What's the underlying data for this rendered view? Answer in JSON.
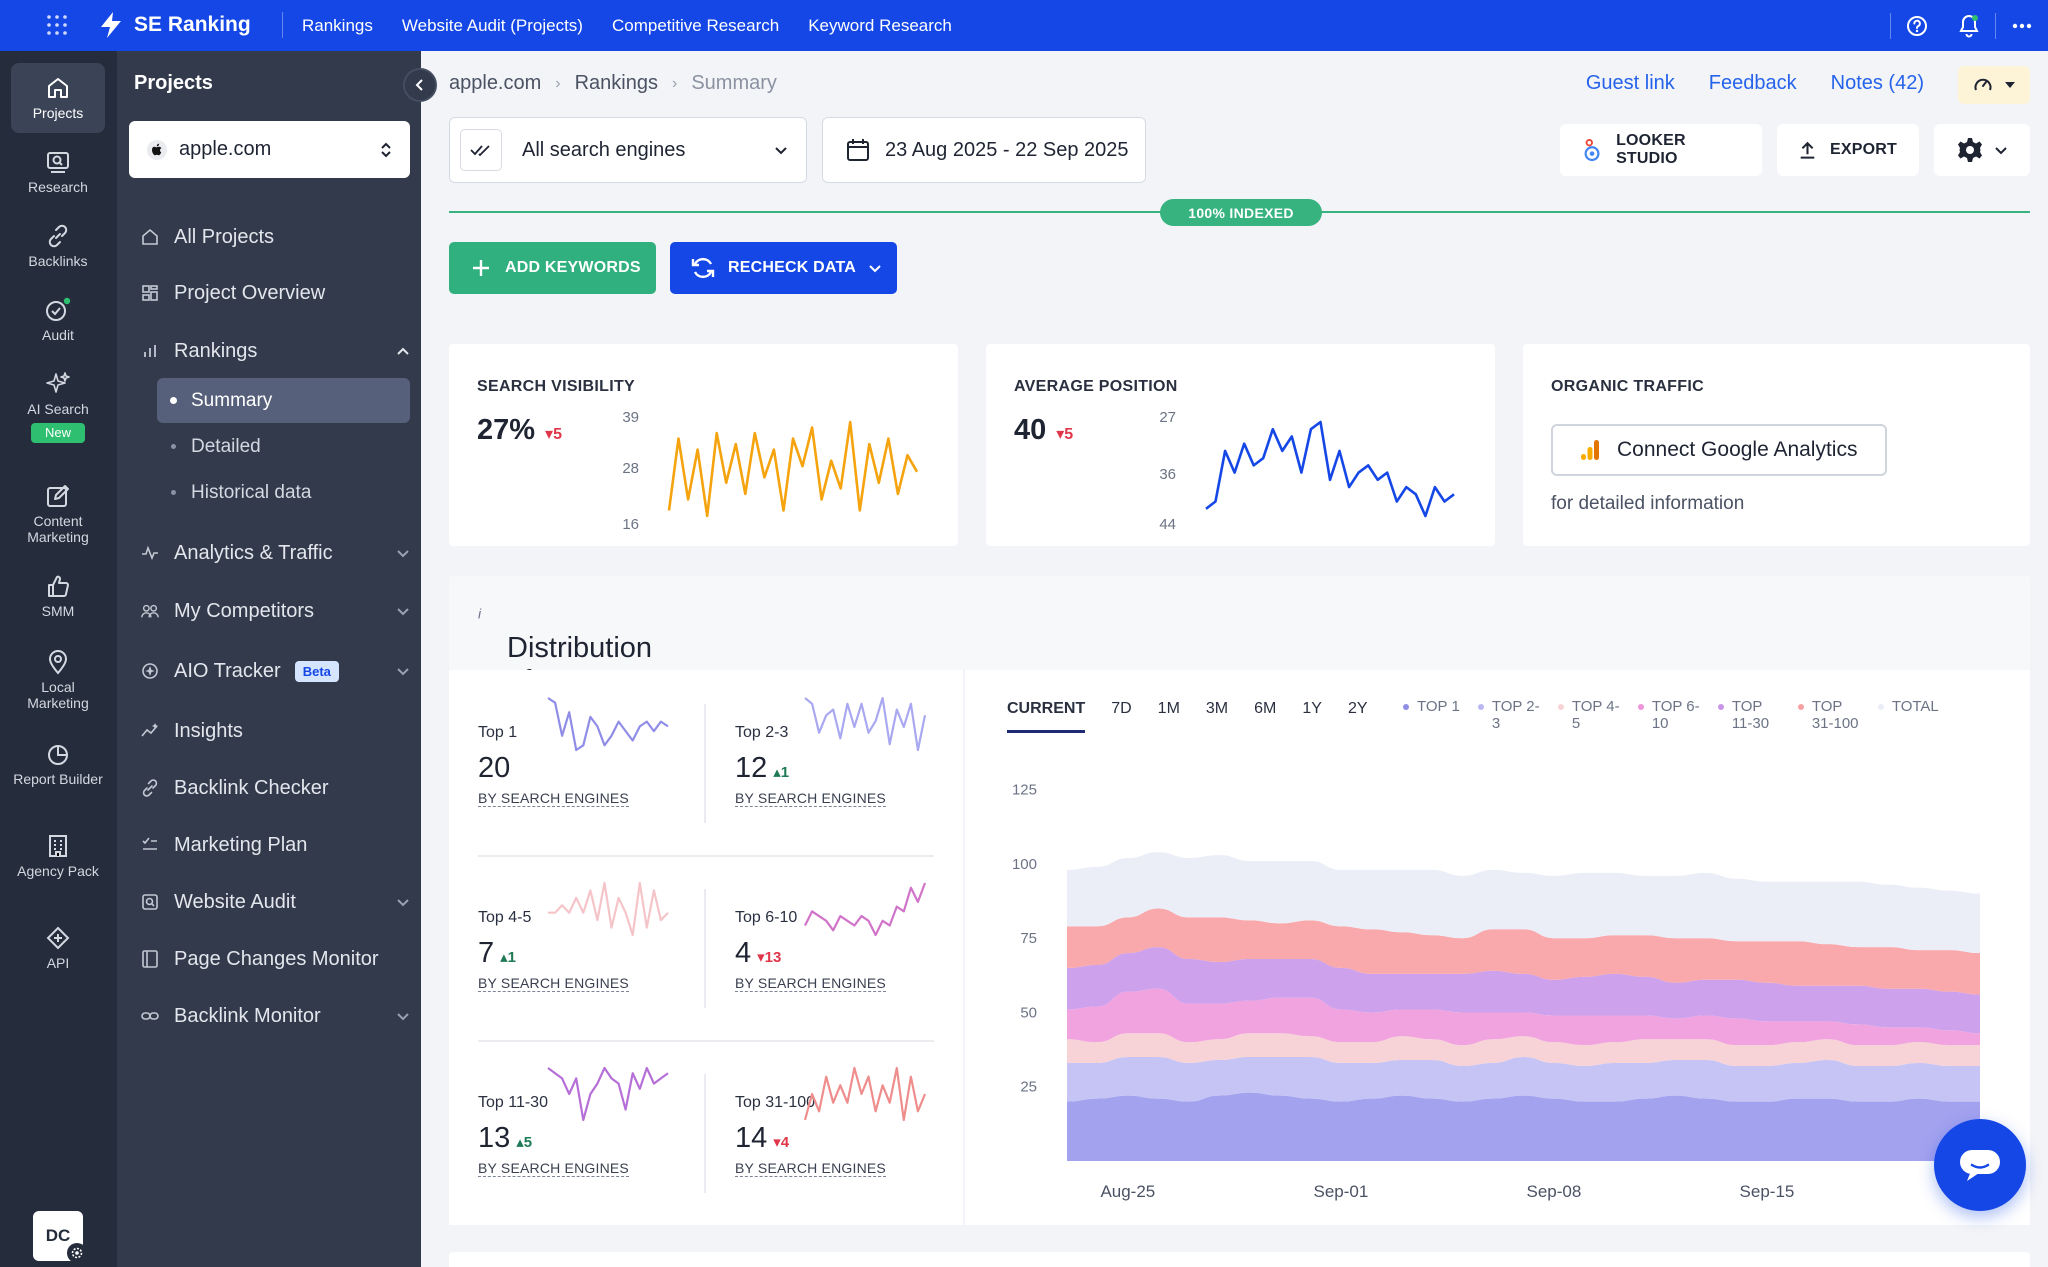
{
  "topbar": {
    "brand": "SE Ranking",
    "nav": [
      "Rankings",
      "Website Audit (Projects)",
      "Competitive Research",
      "Keyword Research"
    ],
    "icons": [
      "apps-grid-icon",
      "help-icon",
      "bell-icon",
      "more-icon"
    ]
  },
  "rail": [
    {
      "label": "Projects",
      "icon": "home-icon"
    },
    {
      "label": "Research",
      "icon": "research-icon"
    },
    {
      "label": "Backlinks",
      "icon": "link-icon"
    },
    {
      "label": "Audit",
      "icon": "audit-check-icon"
    },
    {
      "label": "AI Search",
      "icon": "sparkle-icon",
      "badge": "New"
    },
    {
      "label": "Content Marketing",
      "icon": "edit-icon"
    },
    {
      "label": "SMM",
      "icon": "thumbs-up-icon"
    },
    {
      "label": "Local Marketing",
      "icon": "pin-icon"
    },
    {
      "label": "Report Builder",
      "icon": "report-icon"
    },
    {
      "label": "Agency Pack",
      "icon": "building-icon"
    },
    {
      "label": "API",
      "icon": "api-icon"
    }
  ],
  "user": {
    "initials": "DC"
  },
  "sidebar": {
    "title": "Projects",
    "project": "apple.com",
    "items": [
      {
        "label": "All Projects",
        "icon": "home-icon"
      },
      {
        "label": "Project Overview",
        "icon": "dashboard-icon"
      },
      {
        "label": "Rankings",
        "icon": "bar-chart-icon"
      },
      {
        "label": "Analytics & Traffic",
        "icon": "pulse-icon"
      },
      {
        "label": "My Competitors",
        "icon": "users-icon"
      },
      {
        "label": "AIO Tracker",
        "icon": "aio-icon",
        "badge": "Beta"
      },
      {
        "label": "Insights",
        "icon": "insights-icon"
      },
      {
        "label": "Backlink Checker",
        "icon": "link-icon"
      },
      {
        "label": "Marketing Plan",
        "icon": "checklist-icon"
      },
      {
        "label": "Website Audit",
        "icon": "audit-icon"
      },
      {
        "label": "Page Changes Monitor",
        "icon": "page-changes-icon"
      },
      {
        "label": "Backlink Monitor",
        "icon": "chain-icon"
      }
    ],
    "rankings_sub": [
      "Summary",
      "Detailed",
      "Historical data"
    ]
  },
  "breadcrumb": [
    "apple.com",
    "Rankings",
    "Summary"
  ],
  "header_links": {
    "guest": "Guest link",
    "feedback": "Feedback",
    "notes": "Notes (42)"
  },
  "filters": {
    "engines": "All search engines",
    "date_range": "23 Aug 2025 - 22 Sep 2025"
  },
  "toolbar": {
    "looker": "LOOKER STUDIO",
    "export": "EXPORT"
  },
  "indexed": "100% INDEXED",
  "actions": {
    "add": "ADD KEYWORDS",
    "recheck": "RECHECK DATA"
  },
  "cards": {
    "visibility": {
      "label": "SEARCH VISIBILITY",
      "value": "27%",
      "delta": "5",
      "trend": "down",
      "yticks": [
        "39",
        "28",
        "16"
      ],
      "color": "#f5a30f"
    },
    "avg_position": {
      "label": "AVERAGE POSITION",
      "value": "40",
      "delta": "5",
      "trend": "down",
      "yticks": [
        "27",
        "36",
        "44"
      ],
      "color": "#1447e6"
    },
    "traffic": {
      "label": "ORGANIC TRAFFIC",
      "button": "Connect Google Analytics",
      "note": "for detailed information"
    }
  },
  "distribution": {
    "title": "Distribution of top positions",
    "info": "i",
    "tiles": [
      {
        "label": "Top 1",
        "value": "20",
        "delta": "",
        "trend": "none",
        "sub": "BY SEARCH ENGINES",
        "color": "#8f8de6"
      },
      {
        "label": "Top 2-3",
        "value": "12",
        "delta": "1",
        "trend": "up",
        "sub": "BY SEARCH ENGINES",
        "color": "#a9a8f0"
      },
      {
        "label": "Top 4-5",
        "value": "7",
        "delta": "1",
        "trend": "up",
        "sub": "BY SEARCH ENGINES",
        "color": "#f4c4c8"
      },
      {
        "label": "Top 6-10",
        "value": "4",
        "delta": "13",
        "trend": "down",
        "sub": "BY SEARCH ENGINES",
        "color": "#d073c9"
      },
      {
        "label": "Top 11-30",
        "value": "13",
        "delta": "5",
        "trend": "up",
        "sub": "BY SEARCH ENGINES",
        "color": "#b66fd6"
      },
      {
        "label": "Top 31-100",
        "value": "14",
        "delta": "4",
        "trend": "down",
        "sub": "BY SEARCH ENGINES",
        "color": "#ef8d8d"
      }
    ],
    "ranges": [
      "CURRENT",
      "7D",
      "1M",
      "3M",
      "6M",
      "1Y",
      "2Y"
    ],
    "legend": [
      {
        "label": "TOP 1",
        "color": "#8f8de6"
      },
      {
        "label": "TOP 2-3",
        "color": "#b9b8f0"
      },
      {
        "label": "TOP 4-5",
        "color": "#f7d3d6"
      },
      {
        "label": "TOP 6-10",
        "color": "#ee94d8"
      },
      {
        "label": "TOP 11-30",
        "color": "#c895e8"
      },
      {
        "label": "TOP 31-100",
        "color": "#f8a0a2"
      },
      {
        "label": "TOTAL",
        "color": "#ebedf6"
      }
    ]
  },
  "chart_data": {
    "type": "area",
    "stacked": true,
    "yticks": [
      "125",
      "100",
      "75",
      "50",
      "25"
    ],
    "ylim": [
      0,
      125
    ],
    "xticks": [
      "Aug-25",
      "Sep-01",
      "Sep-08",
      "Sep-15",
      "Se"
    ],
    "x": [
      "Aug-23",
      "Aug-24",
      "Aug-25",
      "Aug-26",
      "Aug-27",
      "Aug-28",
      "Aug-29",
      "Aug-30",
      "Aug-31",
      "Sep-01",
      "Sep-02",
      "Sep-03",
      "Sep-04",
      "Sep-05",
      "Sep-06",
      "Sep-07",
      "Sep-08",
      "Sep-09",
      "Sep-10",
      "Sep-11",
      "Sep-12",
      "Sep-13",
      "Sep-14",
      "Sep-15",
      "Sep-16",
      "Sep-17",
      "Sep-18",
      "Sep-19",
      "Sep-20",
      "Sep-21",
      "Sep-22"
    ],
    "series": [
      {
        "name": "TOP 1",
        "color": "#a3a2ee",
        "values": [
          20,
          21,
          22,
          21,
          20,
          22,
          23,
          22,
          21,
          20,
          21,
          22,
          21,
          20,
          21,
          22,
          21,
          20,
          20,
          21,
          22,
          21,
          20,
          20,
          21,
          21,
          20,
          20,
          21,
          20,
          20
        ]
      },
      {
        "name": "TOP 2-3",
        "color": "#c5c4f4",
        "values": [
          13,
          12,
          13,
          14,
          13,
          12,
          12,
          13,
          14,
          13,
          12,
          12,
          13,
          12,
          12,
          13,
          12,
          12,
          13,
          12,
          12,
          13,
          12,
          12,
          12,
          13,
          12,
          12,
          12,
          12,
          12
        ]
      },
      {
        "name": "TOP 4-5",
        "color": "#f7d3d8",
        "values": [
          8,
          7,
          8,
          8,
          7,
          7,
          8,
          8,
          7,
          7,
          7,
          8,
          7,
          7,
          8,
          7,
          7,
          7,
          7,
          8,
          7,
          7,
          7,
          7,
          7,
          7,
          7,
          7,
          7,
          7,
          7
        ]
      },
      {
        "name": "TOP 6-10",
        "color": "#f0a3df",
        "values": [
          10,
          12,
          14,
          15,
          13,
          12,
          11,
          12,
          13,
          11,
          10,
          9,
          10,
          11,
          9,
          8,
          9,
          10,
          9,
          8,
          7,
          8,
          9,
          8,
          7,
          6,
          7,
          6,
          5,
          5,
          4
        ]
      },
      {
        "name": "TOP 11-30",
        "color": "#cda1ec",
        "values": [
          14,
          14,
          13,
          14,
          15,
          14,
          14,
          13,
          13,
          14,
          13,
          12,
          12,
          13,
          14,
          13,
          12,
          13,
          14,
          13,
          12,
          12,
          13,
          13,
          12,
          12,
          13,
          13,
          13,
          13,
          13
        ]
      },
      {
        "name": "TOP 31-100",
        "color": "#f9a8ab",
        "values": [
          14,
          13,
          12,
          13,
          14,
          15,
          13,
          12,
          13,
          14,
          15,
          14,
          13,
          12,
          14,
          15,
          14,
          13,
          13,
          14,
          15,
          14,
          13,
          14,
          15,
          14,
          13,
          14,
          13,
          14,
          14
        ]
      },
      {
        "name": "TOTAL",
        "color": "#eceef7",
        "values": [
          19,
          20,
          20,
          19,
          20,
          21,
          20,
          21,
          20,
          19,
          20,
          21,
          22,
          21,
          20,
          19,
          21,
          22,
          21,
          20,
          21,
          22,
          21,
          20,
          20,
          21,
          22,
          21,
          21,
          20,
          20
        ]
      }
    ]
  },
  "sparks": {
    "visibility": [
      22,
      35,
      24,
      33,
      21,
      36,
      27,
      34,
      25,
      36,
      28,
      33,
      22,
      35,
      30,
      37,
      24,
      31,
      26,
      38,
      22,
      34,
      27,
      35,
      25,
      32,
      29
    ],
    "avg_position": [
      42,
      41,
      34,
      37,
      33,
      36,
      35,
      31,
      34,
      32,
      37,
      31,
      30,
      38,
      34,
      39,
      37,
      36,
      38,
      37,
      41,
      39,
      40,
      43,
      39,
      41,
      40
    ],
    "top1": [
      22,
      21,
      14,
      19,
      11,
      12,
      18,
      16,
      12,
      14,
      17,
      15,
      13,
      16,
      17,
      15,
      17,
      16
    ],
    "top23": [
      14,
      13,
      8,
      11,
      12,
      7,
      13,
      9,
      13,
      8,
      10,
      14,
      6,
      12,
      9,
      13,
      5,
      11
    ],
    "top45": [
      6,
      6,
      7,
      6,
      8,
      6,
      9,
      5,
      10,
      4,
      8,
      6,
      3,
      10,
      4,
      9,
      5,
      6
    ],
    "top610": [
      4,
      7,
      6,
      5,
      3,
      6,
      5,
      4,
      6,
      5,
      2,
      5,
      4,
      8,
      7,
      12,
      9,
      13
    ],
    "top1130": [
      14,
      13,
      12,
      9,
      12,
      4,
      9,
      11,
      14,
      12,
      11,
      6,
      13,
      10,
      14,
      11,
      12,
      13
    ],
    "top31100": [
      13,
      16,
      14,
      18,
      15,
      17,
      15,
      19,
      16,
      18,
      14,
      17,
      15,
      19,
      13,
      18,
      14,
      16
    ]
  }
}
